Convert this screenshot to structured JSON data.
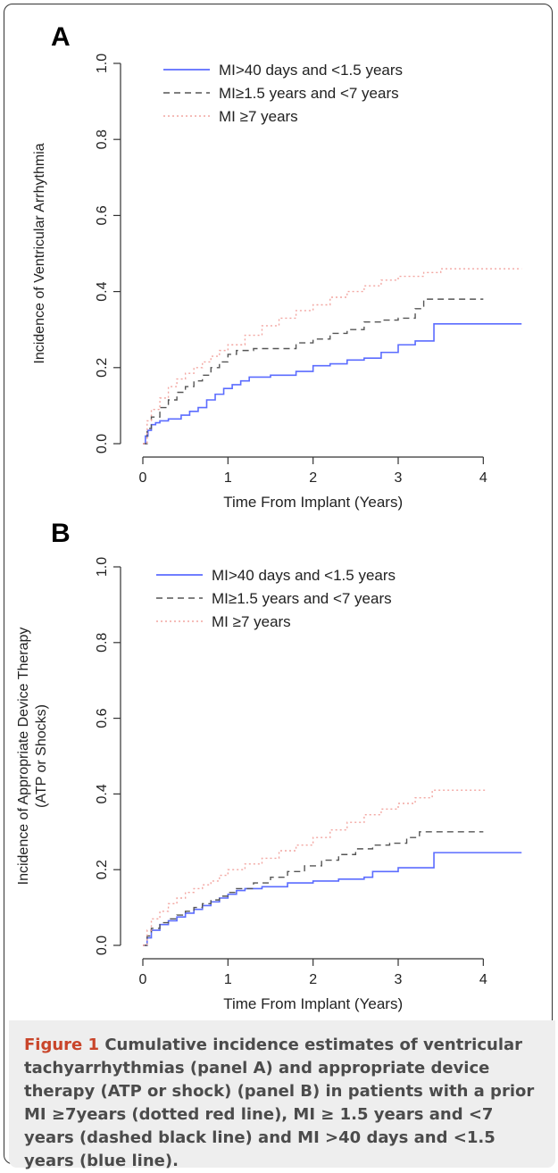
{
  "chart_data": [
    {
      "panel": "A",
      "type": "line",
      "ylabel": "Incidence of Ventricular Arrhythmia",
      "ylabel2": "",
      "xlabel": "Time From Implant (Years)",
      "xlim": [
        0,
        4.5
      ],
      "ylim": [
        0,
        1.0
      ],
      "xticks": [
        0,
        1,
        2,
        3,
        4
      ],
      "yticks": [
        0.0,
        0.2,
        0.4,
        0.6,
        0.8,
        1.0
      ],
      "ytick_labels": [
        "0.0",
        "0.2",
        "0.4",
        "0.6",
        "0.8",
        "1.0"
      ],
      "legend_position": "top-left",
      "series": [
        {
          "name": "MI>40 days and <1.5 years",
          "color": "#5b6cff",
          "style": "solid",
          "x": [
            0,
            0.03,
            0.06,
            0.1,
            0.15,
            0.2,
            0.3,
            0.45,
            0.55,
            0.65,
            0.75,
            0.85,
            0.95,
            1.05,
            1.15,
            1.25,
            1.5,
            1.8,
            2.0,
            2.2,
            2.4,
            2.6,
            2.8,
            3.0,
            3.2,
            3.42,
            3.42,
            4.45
          ],
          "y": [
            0,
            0.02,
            0.035,
            0.05,
            0.055,
            0.06,
            0.065,
            0.075,
            0.085,
            0.095,
            0.115,
            0.13,
            0.145,
            0.155,
            0.165,
            0.175,
            0.18,
            0.19,
            0.205,
            0.21,
            0.22,
            0.225,
            0.24,
            0.26,
            0.27,
            0.27,
            0.315,
            0.315
          ]
        },
        {
          "name": "MI≥1.5 years and <7 years",
          "color": "#555555",
          "style": "dashed",
          "x": [
            0,
            0.05,
            0.1,
            0.2,
            0.3,
            0.4,
            0.5,
            0.6,
            0.7,
            0.8,
            0.9,
            1.0,
            1.1,
            1.3,
            1.5,
            1.8,
            2.0,
            2.2,
            2.4,
            2.6,
            2.8,
            3.0,
            3.2,
            3.3,
            4.0
          ],
          "y": [
            0,
            0.04,
            0.07,
            0.095,
            0.115,
            0.135,
            0.15,
            0.165,
            0.18,
            0.2,
            0.215,
            0.235,
            0.245,
            0.25,
            0.25,
            0.265,
            0.275,
            0.29,
            0.3,
            0.32,
            0.325,
            0.33,
            0.355,
            0.38,
            0.38
          ]
        },
        {
          "name": "MI ≥7 years",
          "color": "#f2a5a0",
          "style": "dotted",
          "x": [
            0,
            0.05,
            0.1,
            0.2,
            0.3,
            0.4,
            0.5,
            0.6,
            0.7,
            0.8,
            0.9,
            1.0,
            1.2,
            1.4,
            1.6,
            1.8,
            2.0,
            2.2,
            2.4,
            2.6,
            2.8,
            3.0,
            3.3,
            3.5,
            4.0,
            4.45
          ],
          "y": [
            0,
            0.06,
            0.09,
            0.12,
            0.15,
            0.17,
            0.185,
            0.2,
            0.215,
            0.23,
            0.245,
            0.26,
            0.285,
            0.31,
            0.33,
            0.35,
            0.365,
            0.385,
            0.4,
            0.415,
            0.43,
            0.44,
            0.45,
            0.46,
            0.46,
            0.46
          ]
        }
      ]
    },
    {
      "panel": "B",
      "type": "line",
      "ylabel": "Incidence of Appropriate Device Therapy",
      "ylabel2": "(ATP or Shocks)",
      "xlabel": "Time From Implant (Years)",
      "xlim": [
        0,
        4.5
      ],
      "ylim": [
        0,
        1.0
      ],
      "xticks": [
        0,
        1,
        2,
        3,
        4
      ],
      "yticks": [
        0.0,
        0.2,
        0.4,
        0.6,
        0.8,
        1.0
      ],
      "ytick_labels": [
        "0.0",
        "0.2",
        "0.4",
        "0.6",
        "0.8",
        "1.0"
      ],
      "legend_position": "top-left",
      "series": [
        {
          "name": "MI>40 days and <1.5 years",
          "color": "#5b6cff",
          "style": "solid",
          "x": [
            0,
            0.05,
            0.1,
            0.2,
            0.3,
            0.4,
            0.5,
            0.6,
            0.7,
            0.8,
            0.9,
            1.0,
            1.1,
            1.2,
            1.4,
            1.7,
            2.0,
            2.3,
            2.6,
            2.7,
            3.0,
            3.42,
            3.42,
            4.45
          ],
          "y": [
            0,
            0.02,
            0.04,
            0.055,
            0.065,
            0.075,
            0.085,
            0.095,
            0.105,
            0.115,
            0.125,
            0.135,
            0.145,
            0.15,
            0.155,
            0.165,
            0.17,
            0.175,
            0.18,
            0.195,
            0.205,
            0.205,
            0.245,
            0.245
          ]
        },
        {
          "name": "MI≥1.5 years and <7 years",
          "color": "#555555",
          "style": "dashed",
          "x": [
            0,
            0.05,
            0.1,
            0.2,
            0.3,
            0.4,
            0.5,
            0.6,
            0.7,
            0.8,
            0.9,
            1.0,
            1.1,
            1.3,
            1.5,
            1.7,
            1.9,
            2.1,
            2.3,
            2.5,
            2.7,
            2.9,
            3.1,
            3.25,
            4.0
          ],
          "y": [
            0,
            0.025,
            0.045,
            0.06,
            0.07,
            0.08,
            0.09,
            0.1,
            0.11,
            0.12,
            0.13,
            0.14,
            0.15,
            0.165,
            0.18,
            0.195,
            0.21,
            0.225,
            0.24,
            0.255,
            0.265,
            0.27,
            0.285,
            0.3,
            0.3
          ]
        },
        {
          "name": "MI ≥7 years",
          "color": "#f2a5a0",
          "style": "dotted",
          "x": [
            0,
            0.05,
            0.1,
            0.2,
            0.3,
            0.4,
            0.5,
            0.6,
            0.7,
            0.8,
            0.9,
            1.0,
            1.2,
            1.4,
            1.6,
            1.8,
            2.0,
            2.2,
            2.4,
            2.6,
            2.8,
            3.0,
            3.2,
            3.4,
            4.0,
            4.05
          ],
          "y": [
            0,
            0.04,
            0.07,
            0.09,
            0.11,
            0.125,
            0.14,
            0.15,
            0.16,
            0.17,
            0.185,
            0.2,
            0.215,
            0.23,
            0.25,
            0.265,
            0.285,
            0.305,
            0.325,
            0.345,
            0.36,
            0.375,
            0.39,
            0.41,
            0.41,
            0.41
          ]
        }
      ]
    }
  ],
  "caption": {
    "label": "Figure 1",
    "text": " Cumulative incidence estimates of ventricular tachyarrhythmias (panel A) and appropriate device therapy (ATP or shock) (panel B) in patients with a prior MI ≥7years (dotted red line), MI ≥ 1.5 years and <7 years (dashed black line) and MI >40 days and <1.5 years (blue line)."
  }
}
